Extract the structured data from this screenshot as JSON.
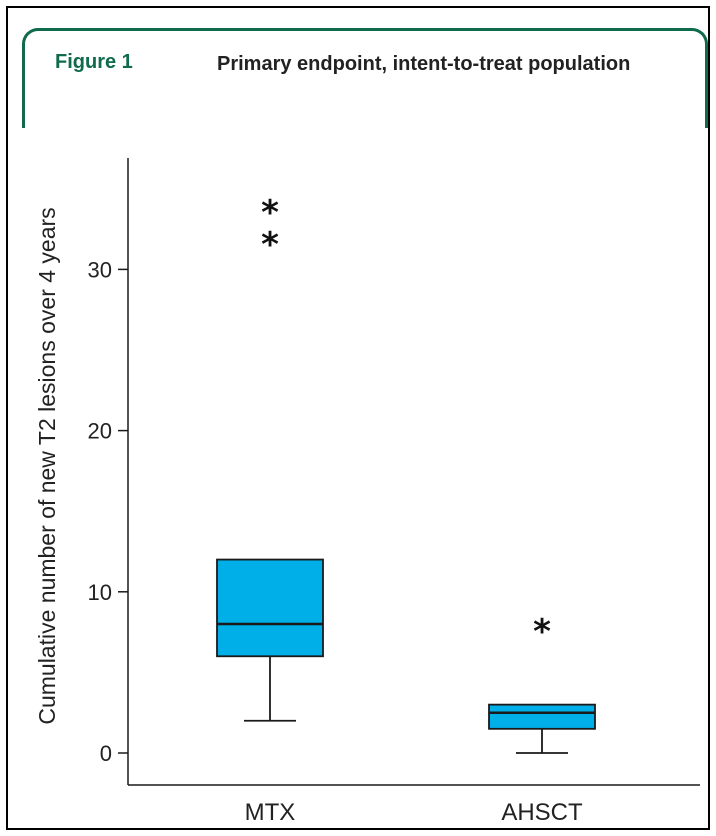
{
  "figure": {
    "label": "Figure 1",
    "title": "Primary endpoint, intent-to-treat population"
  },
  "colors": {
    "accent": "#0f6b4c",
    "box_fill": "#00aee8",
    "stroke": "#1a1a1a"
  },
  "chart_data": {
    "type": "box",
    "title": "Primary endpoint, intent-to-treat population",
    "xlabel": "",
    "ylabel": "Cumulative number of new T2 lesions over 4 years",
    "ylim": [
      0,
      37
    ],
    "yticks": [
      0,
      10,
      20,
      30
    ],
    "categories": [
      "MTX",
      "AHSCT"
    ],
    "boxes": [
      {
        "category": "MTX",
        "whisker_low": 2,
        "q1": 6,
        "median": 8,
        "q3": 12,
        "whisker_high": 12,
        "outliers": [
          32,
          34
        ]
      },
      {
        "category": "AHSCT",
        "whisker_low": 0,
        "q1": 1.5,
        "median": 2.5,
        "q3": 3,
        "whisker_high": 3,
        "outliers": [
          8
        ]
      }
    ],
    "outlier_marker": "*",
    "grid": false
  }
}
